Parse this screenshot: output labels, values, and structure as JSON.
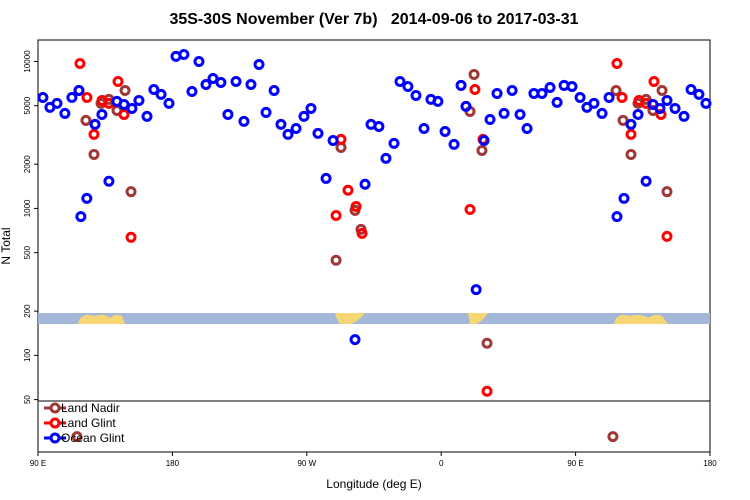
{
  "chart_data": {
    "type": "scatter",
    "title": "35S-30S November (Ver 7b)   2014-09-06 to 2017-03-31",
    "xlabel": "Longitude (deg E)",
    "ylabel": "N Total",
    "log_y": true,
    "legend": "bottom-left",
    "xlim": [
      90,
      540
    ],
    "xticks": [
      {
        "value": 90,
        "label": "90 E"
      },
      180,
      {
        "value": 270,
        "label": "90 W"
      },
      {
        "value": 360,
        "label": "0"
      },
      {
        "value": 450,
        "label": "90 E"
      },
      {
        "value": 540,
        "label": "180"
      }
    ],
    "ylim": [
      22,
      14000
    ],
    "yticks": [
      50,
      100,
      200,
      500,
      1000,
      2000,
      5000,
      10000
    ],
    "series": [
      {
        "name": "Land Nadir",
        "color": "#a03838",
        "x": [
          117.5,
          122.1,
          127.5,
          132.2,
          137.5,
          142.9,
          148.3,
          152.3,
          116.1,
          292.9,
          289.6,
          302.3,
          306.3,
          382,
          379.3,
          387.3,
          390.7,
          475,
          477.1,
          481.8,
          487.1,
          491.8,
          497.2,
          501.8,
          507.9,
          511.2
        ],
        "values": [
          6350,
          3970,
          2330,
          5190,
          5520,
          4640,
          6350,
          1300,
          28,
          2600,
          444,
          970,
          720,
          8160,
          4570,
          2480,
          121,
          28,
          6350,
          3970,
          2330,
          5190,
          5520,
          4640,
          6350,
          1300
        ]
      },
      {
        "name": "Land Glint",
        "color": "#ff0000",
        "x": [
          118.1,
          122.8,
          127.5,
          132.9,
          137.5,
          143.6,
          147.6,
          152.3,
          289.6,
          292.9,
          297.6,
          303,
          307,
          379.3,
          382.6,
          388,
          390.7,
          477.7,
          481.1,
          487.1,
          492.5,
          497.2,
          502.5,
          507.2,
          511.2
        ],
        "values": [
          9690,
          5690,
          3190,
          5430,
          5190,
          7310,
          4360,
          636,
          895,
          2950,
          1330,
          1030,
          676,
          984,
          6450,
          2950,
          57,
          9690,
          5690,
          3190,
          5430,
          5190,
          7310,
          4360,
          645
        ]
      },
      {
        "name": "Ocean Glint",
        "color": "#0000ff",
        "x": [
          93.3,
          98,
          102.7,
          108,
          112.7,
          117.4,
          118.7,
          122.7,
          128.2,
          132.8,
          137.5,
          142.8,
          147.6,
          152.9,
          157.6,
          163,
          167.6,
          172.4,
          177.7,
          182.4,
          187.7,
          193.1,
          197.8,
          202.5,
          207.2,
          212.5,
          217.2,
          222.6,
          227.9,
          232.6,
          238,
          242.7,
          248.1,
          252.7,
          257.4,
          262.8,
          268.1,
          272.8,
          277.5,
          282.9,
          287.6,
          302.3,
          309,
          313,
          318.3,
          323,
          328.4,
          332.4,
          337.7,
          343.1,
          348.5,
          353.1,
          357.8,
          362.6,
          368.6,
          373.3,
          376.6,
          383.4,
          388.7,
          392.7,
          397.4,
          402.1,
          407.5,
          412.8,
          417.5,
          422.1,
          427.5,
          432.9,
          437.6,
          442.3,
          447.6,
          453,
          457.6,
          462.3,
          467.7,
          472.4,
          477.7,
          482.4,
          487.1,
          491.8,
          497.2,
          501.8,
          506.5,
          511.2,
          516.6,
          522.6,
          527.3,
          532.6,
          537.3
        ],
        "values": [
          5690,
          4870,
          5190,
          4430,
          5690,
          6350,
          880,
          1170,
          3730,
          4360,
          1530,
          5350,
          5100,
          4790,
          5430,
          4230,
          6450,
          5970,
          5190,
          10830,
          11150,
          6250,
          10000,
          6970,
          7660,
          7200,
          4360,
          7310,
          3910,
          6970,
          9540,
          4500,
          6350,
          3730,
          3190,
          3500,
          4230,
          4790,
          3240,
          1600,
          2900,
          128,
          1460,
          3730,
          3610,
          2190,
          2770,
          7310,
          6760,
          5870,
          3500,
          5520,
          5350,
          3340,
          2730,
          6870,
          4950,
          280,
          2900,
          4030,
          6060,
          4430,
          6350,
          4360,
          3500,
          6060,
          6060,
          6650,
          5270,
          6870,
          6760,
          5690,
          4870,
          5190,
          4430,
          5690,
          880,
          1170,
          3730,
          4360,
          1530,
          5100,
          4790,
          5430,
          4790,
          4230,
          6450,
          5970,
          5190
        ]
      }
    ]
  }
}
